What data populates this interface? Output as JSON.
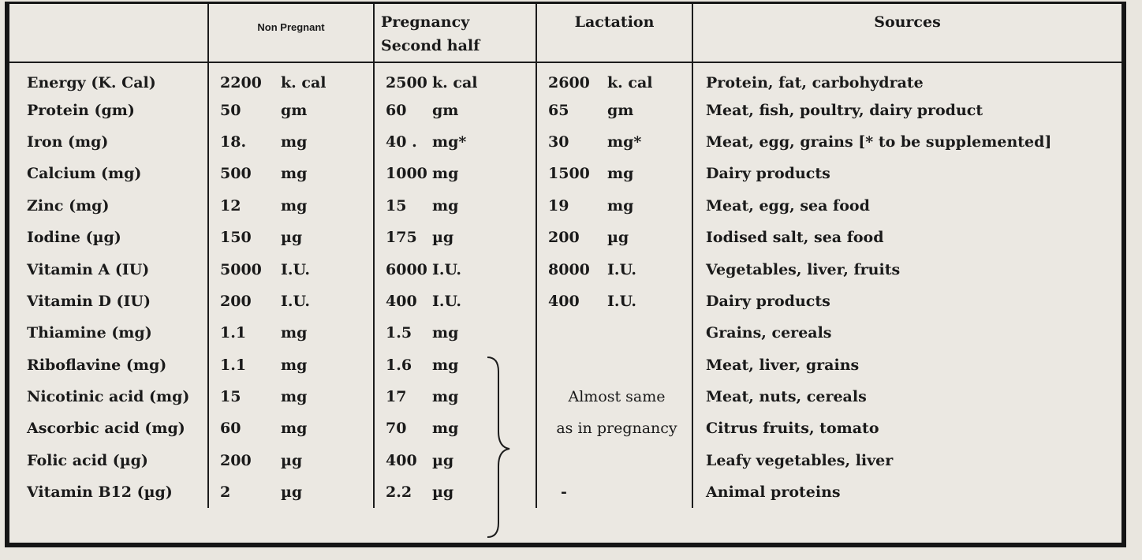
{
  "headers": {
    "nutrient": "",
    "non_pregnant": "Non Pregnant",
    "pregnancy_line1": "Pregnancy",
    "pregnancy_line2": "Second half",
    "lactation": "Lactation",
    "sources": "Sources"
  },
  "rows": [
    {
      "nutrient": "Energy (K. Cal)",
      "np_val": "2200",
      "np_unit": "k. cal",
      "pg_val": "2500",
      "pg_unit": "k. cal",
      "lc_val": "2600",
      "lc_unit": "k. cal",
      "source": "Protein, fat, carbohydrate"
    },
    {
      "nutrient": "Protein (gm)",
      "np_val": "50",
      "np_unit": "gm",
      "pg_val": "60",
      "pg_unit": "gm",
      "lc_val": "65",
      "lc_unit": "gm",
      "source": "Meat, fish, poultry, dairy product"
    },
    {
      "nutrient": "Iron (mg)",
      "np_val": "18.",
      "np_unit": "mg",
      "pg_val": "40 .",
      "pg_unit": "mg*",
      "lc_val": "30",
      "lc_unit": "mg*",
      "source": "Meat, egg, grains  [* to be supplemented]"
    },
    {
      "nutrient": "Calcium (mg)",
      "np_val": "500",
      "np_unit": "mg",
      "pg_val": "1000",
      "pg_unit": "mg",
      "lc_val": "1500",
      "lc_unit": "mg",
      "source": "Dairy products"
    },
    {
      "nutrient": "Zinc (mg)",
      "np_val": "12",
      "np_unit": "mg",
      "pg_val": "15",
      "pg_unit": "mg",
      "lc_val": "19",
      "lc_unit": "mg",
      "source": "Meat, egg, sea food"
    },
    {
      "nutrient": "Iodine (µg)",
      "np_val": "150",
      "np_unit": "µg",
      "pg_val": "175",
      "pg_unit": "µg",
      "lc_val": "200",
      "lc_unit": "µg",
      "source": "Iodised salt, sea food"
    },
    {
      "nutrient": "Vitamin A (IU)",
      "np_val": "5000",
      "np_unit": "I.U.",
      "pg_val": "6000",
      "pg_unit": "I.U.",
      "lc_val": "8000",
      "lc_unit": "I.U.",
      "source": "Vegetables, liver, fruits"
    },
    {
      "nutrient": "Vitamin D (IU)",
      "np_val": "200",
      "np_unit": "I.U.",
      "pg_val": "400",
      "pg_unit": "I.U.",
      "lc_val": "400",
      "lc_unit": "I.U.",
      "source": "Dairy products"
    },
    {
      "nutrient": "Thiamine (mg)",
      "np_val": "1.1",
      "np_unit": "mg",
      "pg_val": "1.5",
      "pg_unit": "mg",
      "lc_val": "",
      "lc_unit": "",
      "source": "Grains, cereals"
    },
    {
      "nutrient": "Riboflavine (mg)",
      "np_val": "1.1",
      "np_unit": "mg",
      "pg_val": "1.6",
      "pg_unit": "mg",
      "lc_val": "",
      "lc_unit": "",
      "source": "Meat, liver, grains"
    },
    {
      "nutrient": "Nicotinic acid (mg)",
      "np_val": "15",
      "np_unit": "mg",
      "pg_val": "17",
      "pg_unit": "mg",
      "lc_val": "",
      "lc_unit": "",
      "source": "Meat, nuts, cereals"
    },
    {
      "nutrient": "Ascorbic acid (mg)",
      "np_val": "60",
      "np_unit": "mg",
      "pg_val": "70",
      "pg_unit": "mg",
      "lc_val": "",
      "lc_unit": "",
      "source": "Citrus fruits, tomato"
    },
    {
      "nutrient": "Folic acid (µg)",
      "np_val": "200",
      "np_unit": "µg",
      "pg_val": "400",
      "pg_unit": "µg",
      "lc_val": "",
      "lc_unit": "",
      "source": "Leafy vegetables, liver"
    },
    {
      "nutrient": "Vitamin B12 (µg)",
      "np_val": "2",
      "np_unit": "µg",
      "pg_val": "2.2",
      "pg_unit": "µg",
      "lc_val": "-",
      "lc_unit": "",
      "source": "Animal proteins"
    }
  ],
  "lactation_note_line1": "Almost same",
  "lactation_note_line2": "as in pregnancy"
}
